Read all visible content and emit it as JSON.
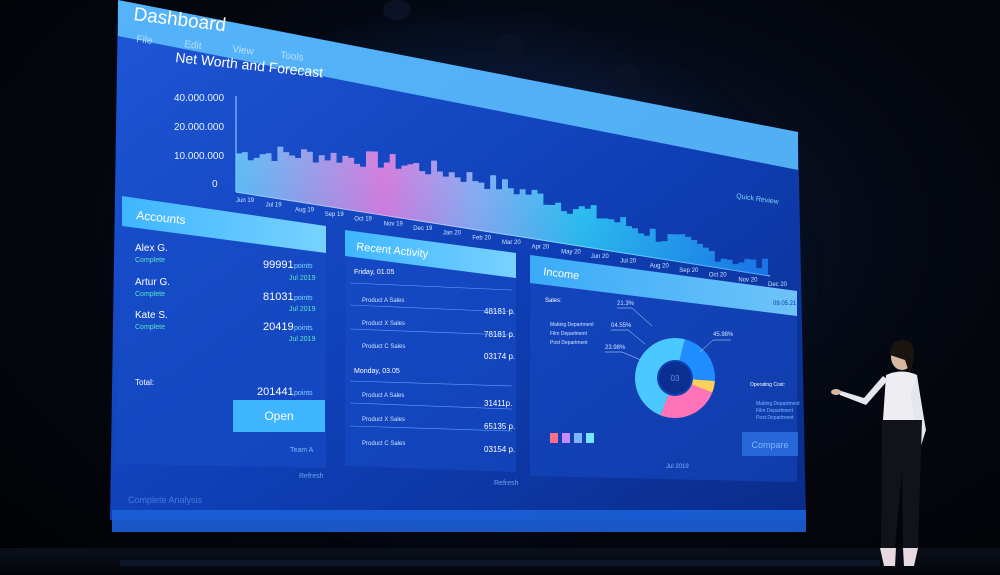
{
  "app": {
    "title": "Dashboard",
    "menu": [
      "File",
      "Edit",
      "View",
      "Tools"
    ]
  },
  "net_worth": {
    "title": "Net Worth and Forecast",
    "y_ticks": [
      "40.000.000",
      "20.000.000",
      "10.000.000",
      "0"
    ],
    "x_ticks": [
      "Jun 19",
      "Jul 19",
      "Aug 19",
      "Sep 19",
      "Oct 19",
      "Nov 19",
      "Dec 19",
      "Jan 20",
      "Feb 20",
      "Mar 20",
      "Apr 20",
      "May 20",
      "Jun 20",
      "Jul 20",
      "Aug 20",
      "Sep 20",
      "Oct 20",
      "Nov 20",
      "Dec 20"
    ],
    "quick_review": "Quick Review"
  },
  "accounts": {
    "title": "Accounts",
    "rows": [
      {
        "name": "Alex G.",
        "status": "Complete",
        "points": "99991",
        "unit": "points",
        "date": "Jul 2019"
      },
      {
        "name": "Artur G.",
        "status": "Complete",
        "points": "81031",
        "unit": "points",
        "date": "Jul 2019"
      },
      {
        "name": "Kate S.",
        "status": "Complete",
        "points": "20419",
        "unit": "points",
        "date": "Jul 2019"
      }
    ],
    "total_label": "Total:",
    "total_value": "201441",
    "total_unit": "points",
    "open_label": "Open",
    "team_label": "Team A",
    "refresh_label": "Refresh"
  },
  "activity": {
    "title": "Recent Activity",
    "groups": [
      {
        "day": "Friday, 01.05",
        "items": [
          {
            "name": "Product A Sales",
            "value": "48181 p."
          },
          {
            "name": "Product X Sales",
            "value": "78181 p."
          },
          {
            "name": "Product C Sales",
            "value": "03174 p."
          }
        ]
      },
      {
        "day": "Monday, 03.05",
        "items": [
          {
            "name": "Product A Sales",
            "value": "31411p."
          },
          {
            "name": "Product X Sales",
            "value": "65135 p."
          },
          {
            "name": "Product C Sales",
            "value": "03154 p."
          }
        ]
      }
    ],
    "refresh_label": "Refresh"
  },
  "income": {
    "title": "Income",
    "date_tag": "09.05.21",
    "sales_label": "Sales:",
    "departments": [
      "Making Department",
      "Film Department",
      "Post Department"
    ],
    "pcts": [
      "21.3%",
      "04.55%",
      "23.98%",
      "45.98%"
    ],
    "center_label": "03",
    "operating_label": "Operating Cost:",
    "operating_items": [
      "Making Department",
      "Film Department",
      "Post Department"
    ],
    "compare_label": "Compare",
    "month_label": "Jul 2019",
    "swatch_colors": [
      "#ff6f8a",
      "#c48cff",
      "#7fb4ff",
      "#79e6ff"
    ]
  },
  "chart_data": [
    {
      "type": "pie",
      "labels": [
        "21.3%",
        "04.55%",
        "23.98%",
        "45.98%"
      ],
      "values": [
        21.3,
        4.55,
        23.98,
        45.98
      ],
      "colors": [
        "#1f8cff",
        "#ffd05a",
        "#ff74b8",
        "#4ac8ff"
      ]
    }
  ],
  "footer": {
    "complete_label": "Complete Analysis"
  }
}
